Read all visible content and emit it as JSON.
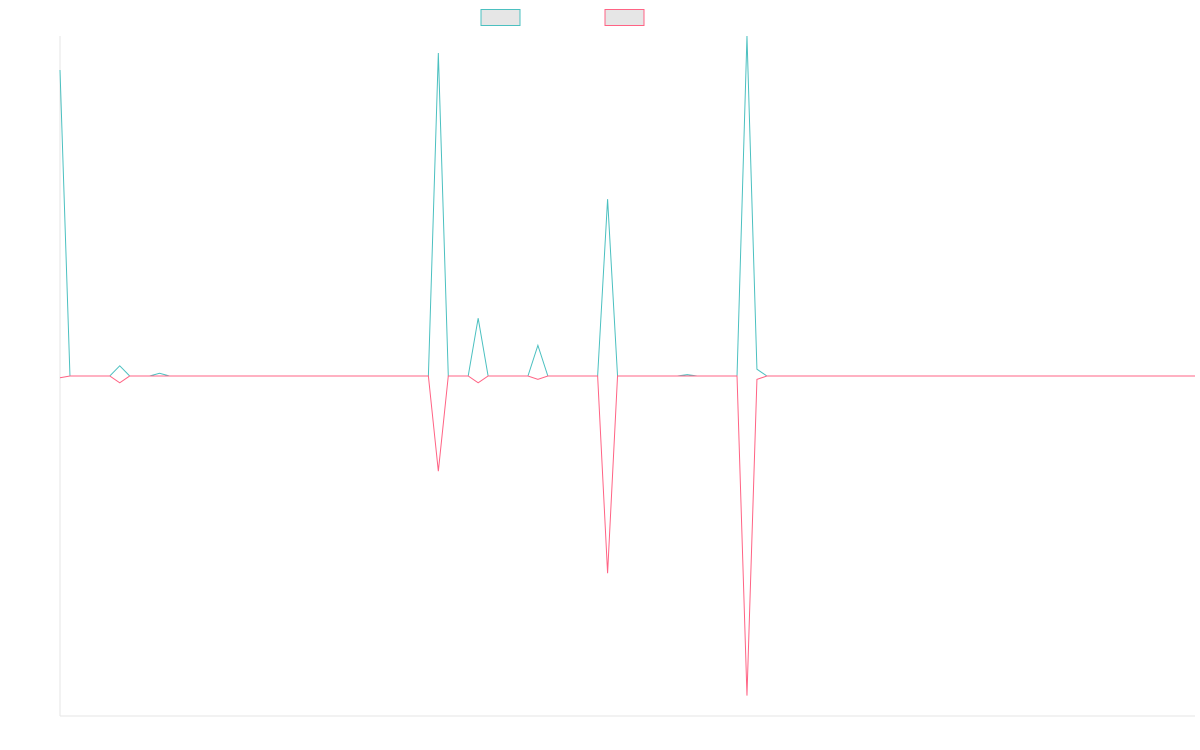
{
  "chart_data": {
    "type": "line",
    "title": "",
    "xlabel": "",
    "ylabel": "",
    "grid": false,
    "legend": {
      "placement": "top-center"
    },
    "n_points": 115,
    "ylim": [
      -1.0,
      1.0
    ],
    "series": [
      {
        "name": "",
        "color": "#4bc0c0",
        "spikes": [
          {
            "i": 0,
            "value": 0.9
          },
          {
            "i": 6,
            "value": 0.03
          },
          {
            "i": 10,
            "value": 0.008
          },
          {
            "i": 38,
            "value": 0.95
          },
          {
            "i": 42,
            "value": 0.17
          },
          {
            "i": 48,
            "value": 0.09
          },
          {
            "i": 55,
            "value": 0.52
          },
          {
            "i": 63,
            "value": 0.004
          },
          {
            "i": 69,
            "value": 1.0
          },
          {
            "i": 70,
            "value": 0.02
          }
        ]
      },
      {
        "name": "",
        "color": "#ff6384",
        "spikes": [
          {
            "i": 0,
            "value": -0.005
          },
          {
            "i": 6,
            "value": -0.02
          },
          {
            "i": 38,
            "value": -0.28
          },
          {
            "i": 42,
            "value": -0.02
          },
          {
            "i": 48,
            "value": -0.01
          },
          {
            "i": 55,
            "value": -0.58
          },
          {
            "i": 69,
            "value": -0.94
          },
          {
            "i": 70,
            "value": -0.01
          }
        ]
      }
    ]
  }
}
